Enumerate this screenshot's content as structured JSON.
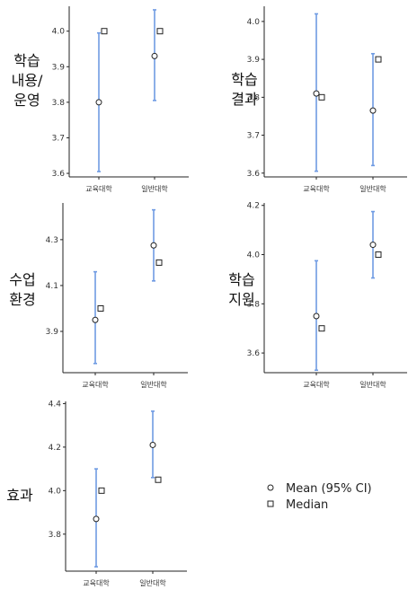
{
  "chart_data": [
    {
      "type": "errorbar",
      "title_lines": [
        "학습",
        "내용/",
        "운영"
      ],
      "categories": [
        "교육대학",
        "일반대학"
      ],
      "mean": [
        3.8,
        3.93
      ],
      "ci_low": [
        3.605,
        3.805
      ],
      "ci_high": [
        3.995,
        4.06
      ],
      "median": [
        4.0,
        4.0
      ],
      "ylim": [
        3.59,
        4.07
      ],
      "yticks": [
        3.6,
        3.7,
        3.8,
        3.9,
        4.0
      ],
      "ytick_labels": [
        "3.6",
        "3.7",
        "3.8",
        "3.9",
        "4.0"
      ]
    },
    {
      "type": "errorbar",
      "title_lines": [
        "학습",
        "결과"
      ],
      "categories": [
        "교육대학",
        "일반대학"
      ],
      "mean": [
        3.81,
        3.765
      ],
      "ci_low": [
        3.605,
        3.62
      ],
      "ci_high": [
        4.02,
        3.915
      ],
      "median": [
        3.8,
        3.9
      ],
      "ylim": [
        3.59,
        4.04
      ],
      "yticks": [
        3.6,
        3.7,
        3.8,
        3.9,
        4.0
      ],
      "ytick_labels": [
        "3.6",
        "3.7",
        "3.8",
        "3.9",
        "4.0"
      ]
    },
    {
      "type": "errorbar",
      "title_lines": [
        "수업",
        "환경"
      ],
      "categories": [
        "교육대학",
        "일반대학"
      ],
      "mean": [
        3.95,
        4.275
      ],
      "ci_low": [
        3.76,
        4.12
      ],
      "ci_high": [
        4.16,
        4.43
      ],
      "median": [
        4.0,
        4.2
      ],
      "ylim": [
        3.72,
        4.46
      ],
      "yticks": [
        3.9,
        4.1,
        4.3
      ],
      "ytick_labels": [
        "3.9",
        "4.1",
        "4.3"
      ]
    },
    {
      "type": "errorbar",
      "title_lines": [
        "학습",
        "지원"
      ],
      "categories": [
        "교육대학",
        "일반대학"
      ],
      "mean": [
        3.75,
        4.04
      ],
      "ci_low": [
        3.53,
        3.905
      ],
      "ci_high": [
        3.975,
        4.175
      ],
      "median": [
        3.7,
        4.0
      ],
      "ylim": [
        3.52,
        4.21
      ],
      "yticks": [
        3.6,
        3.8,
        4.0,
        4.2
      ],
      "ytick_labels": [
        "3.6",
        "3.8",
        "4.0",
        "4.2"
      ]
    },
    {
      "type": "errorbar",
      "title_lines": [
        "효과"
      ],
      "categories": [
        "교육대학",
        "일반대학"
      ],
      "mean": [
        3.87,
        4.21
      ],
      "ci_low": [
        3.65,
        4.06
      ],
      "ci_high": [
        4.1,
        4.365
      ],
      "median": [
        4.0,
        4.05
      ],
      "ylim": [
        3.63,
        4.41
      ],
      "yticks": [
        3.8,
        4.0,
        4.2,
        4.4
      ],
      "ytick_labels": [
        "3.8",
        "4.0",
        "4.2",
        "4.4"
      ]
    }
  ],
  "legend": {
    "mean_label": "Mean (95% CI)",
    "median_label": "Median"
  },
  "colors": {
    "ci_line": "#6f9be3",
    "axis": "#222222",
    "marker_stroke": "#222222",
    "marker_fill": "#ffffff"
  }
}
